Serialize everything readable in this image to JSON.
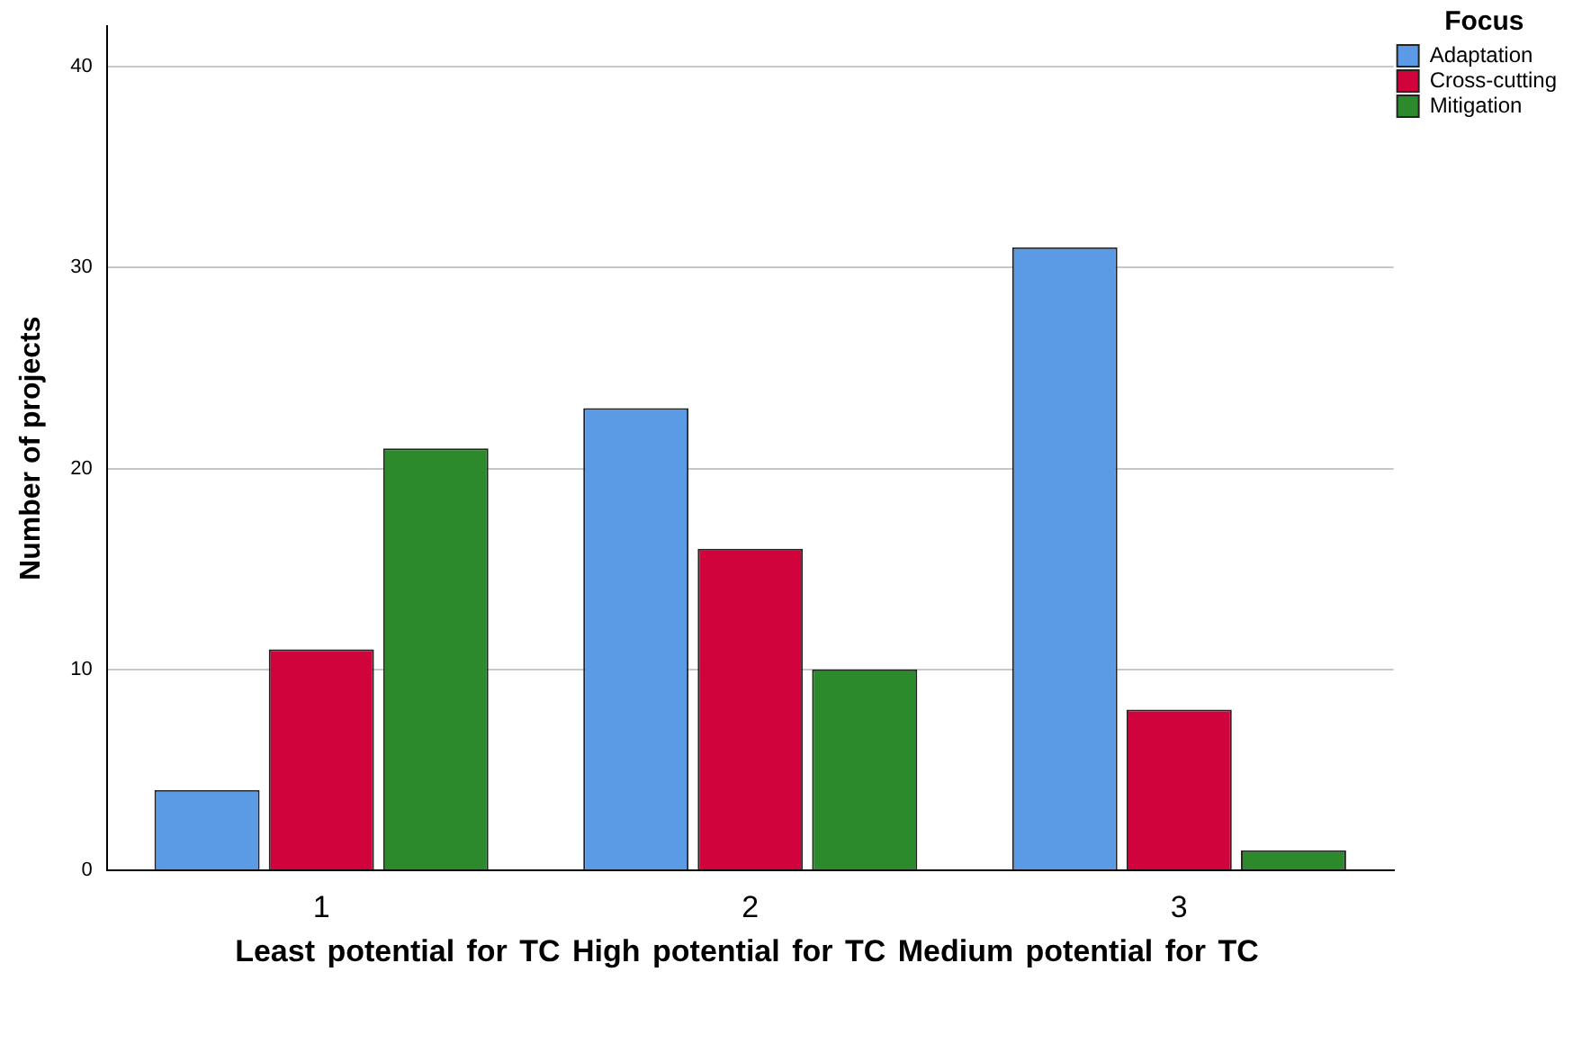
{
  "chart_data": {
    "type": "bar",
    "ylabel": "Number of projects",
    "xlabel": "Least potential for TC High potential for TC Medium potential for TC",
    "categories": [
      "1",
      "2",
      "3"
    ],
    "series": [
      {
        "name": "Adaptation",
        "color": "#5b9be6",
        "values": [
          4,
          23,
          31
        ]
      },
      {
        "name": "Cross-cutting",
        "color": "#d0033c",
        "values": [
          11,
          16,
          8
        ]
      },
      {
        "name": "Mitigation",
        "color": "#2c8a2c",
        "values": [
          21,
          10,
          1
        ]
      }
    ],
    "legend_title": "Focus",
    "legend": "top right",
    "ylim": [
      0,
      42
    ],
    "yticks": [
      0,
      10,
      20,
      30,
      40
    ],
    "grid": "y"
  }
}
